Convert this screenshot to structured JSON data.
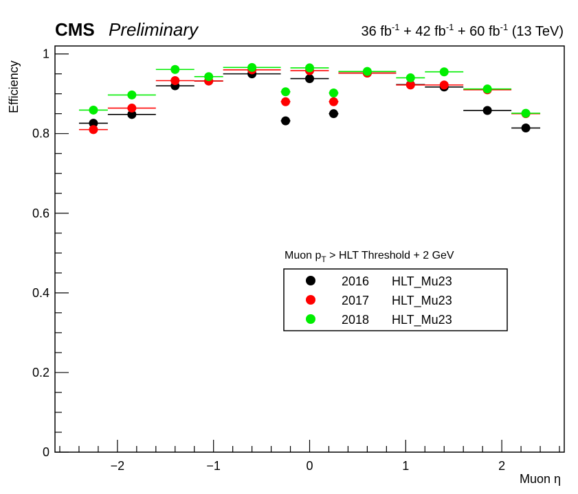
{
  "header": {
    "experiment": "CMS",
    "status": "Preliminary",
    "lumi_parts": [
      "36 fb",
      "-1",
      " + 42 fb",
      "-1",
      " + 60 fb",
      "-1",
      " (13 TeV)"
    ]
  },
  "legend": {
    "title_parts": [
      "Muon p",
      "T",
      " > HLT Threshold + 2 GeV"
    ],
    "entries": [
      {
        "year": "2016",
        "trigger": "HLT_Mu23"
      },
      {
        "year": "2017",
        "trigger": "HLT_Mu23"
      },
      {
        "year": "2018",
        "trigger": "HLT_Mu23"
      }
    ]
  },
  "chart_data": {
    "type": "scatter",
    "xlabel": "Muon η",
    "ylabel": "Efficiency",
    "xlim": [
      -2.65,
      2.65
    ],
    "ylim": [
      0,
      1.02
    ],
    "x_ticks": [
      -2,
      -1,
      0,
      1,
      2
    ],
    "x_tick_labels": [
      "−2",
      "−1",
      "0",
      "1",
      "2"
    ],
    "y_ticks": [
      0,
      0.2,
      0.4,
      0.6,
      0.8,
      1
    ],
    "y_tick_labels": [
      "0",
      "0.2",
      "0.4",
      "0.6",
      "0.8",
      "1"
    ],
    "grid": false,
    "legend_position": "center-right",
    "bins": [
      [
        -2.4,
        -2.1
      ],
      [
        -2.1,
        -1.6
      ],
      [
        -1.6,
        -1.2
      ],
      [
        -1.2,
        -0.9
      ],
      [
        -0.9,
        -0.3
      ],
      [
        -0.3,
        -0.2
      ],
      [
        -0.2,
        0.2
      ],
      [
        0.2,
        0.3
      ],
      [
        0.3,
        0.9
      ],
      [
        0.9,
        1.2
      ],
      [
        1.2,
        1.6
      ],
      [
        1.6,
        2.1
      ],
      [
        2.1,
        2.4
      ]
    ],
    "series": [
      {
        "name": "2016 HLT_Mu23",
        "color": "#000000",
        "values": [
          0.826,
          0.848,
          0.92,
          0.932,
          0.95,
          0.832,
          0.938,
          0.85,
          0.952,
          0.923,
          0.917,
          0.858,
          0.814
        ]
      },
      {
        "name": "2017 HLT_Mu23",
        "color": "#ff0000",
        "values": [
          0.81,
          0.864,
          0.933,
          0.932,
          0.96,
          0.88,
          0.958,
          0.88,
          0.952,
          0.922,
          0.922,
          0.91,
          0.85
        ]
      },
      {
        "name": "2018 HLT_Mu23",
        "color": "#00ee00",
        "values": [
          0.859,
          0.897,
          0.961,
          0.943,
          0.966,
          0.905,
          0.965,
          0.902,
          0.956,
          0.94,
          0.955,
          0.912,
          0.851
        ]
      }
    ]
  }
}
